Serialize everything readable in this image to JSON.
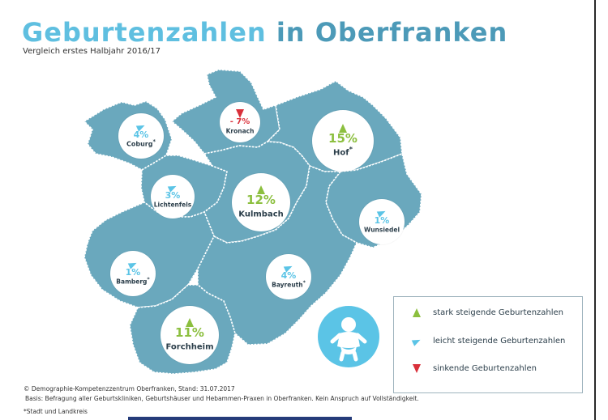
{
  "header": {
    "title_part1": "Geburtenzahlen",
    "title_part2": "in Oberfranken",
    "subtitle": "Vergleich erstes Halbjahr 2016/17"
  },
  "colors": {
    "region_fill": "#6aa8bd",
    "region_border": "#ffffff",
    "strong_increase": "#8cbf3f",
    "light_increase": "#5bc4e6",
    "decrease": "#d9303a",
    "title_light": "#5fbfe0",
    "title_dark": "#4c9ab8"
  },
  "regions": [
    {
      "name": "Coburg",
      "value": "4%",
      "marker": "*",
      "trend": "light"
    },
    {
      "name": "Kronach",
      "value": "- 7%",
      "marker": "",
      "trend": "down"
    },
    {
      "name": "Hof",
      "value": "15%",
      "marker": "*",
      "trend": "strong"
    },
    {
      "name": "Lichtenfels",
      "value": "3%",
      "marker": "",
      "trend": "light"
    },
    {
      "name": "Kulmbach",
      "value": "12%",
      "marker": "",
      "trend": "strong"
    },
    {
      "name": "Wunsiedel",
      "value": "1%",
      "marker": "",
      "trend": "light"
    },
    {
      "name": "Bamberg",
      "value": "1%",
      "marker": "*",
      "trend": "light"
    },
    {
      "name": "Bayreuth",
      "value": "4%",
      "marker": "*",
      "trend": "light"
    },
    {
      "name": "Forchheim",
      "value": "11%",
      "marker": "",
      "trend": "strong"
    }
  ],
  "legend": {
    "strong": "stark steigende Geburtenzahlen",
    "light": "leicht steigende Geburtenzahlen",
    "down": "sinkende Geburtenzahlen"
  },
  "icons": {
    "baby": "baby-icon",
    "strong": "triangle-up-green-icon",
    "light": "triangle-right-blue-icon",
    "down": "triangle-down-red-icon"
  },
  "footer": {
    "source": "© Demographie-Kompetenzzentrum Oberfranken, Stand: 31.07.2017",
    "basis": "Basis: Befragung aller Geburtskliniken, Geburtshäuser und Hebammen-Praxen in Oberfranken. Kein Anspruch auf Vollständigkeit.",
    "note": "*Stadt und Landkreis"
  }
}
